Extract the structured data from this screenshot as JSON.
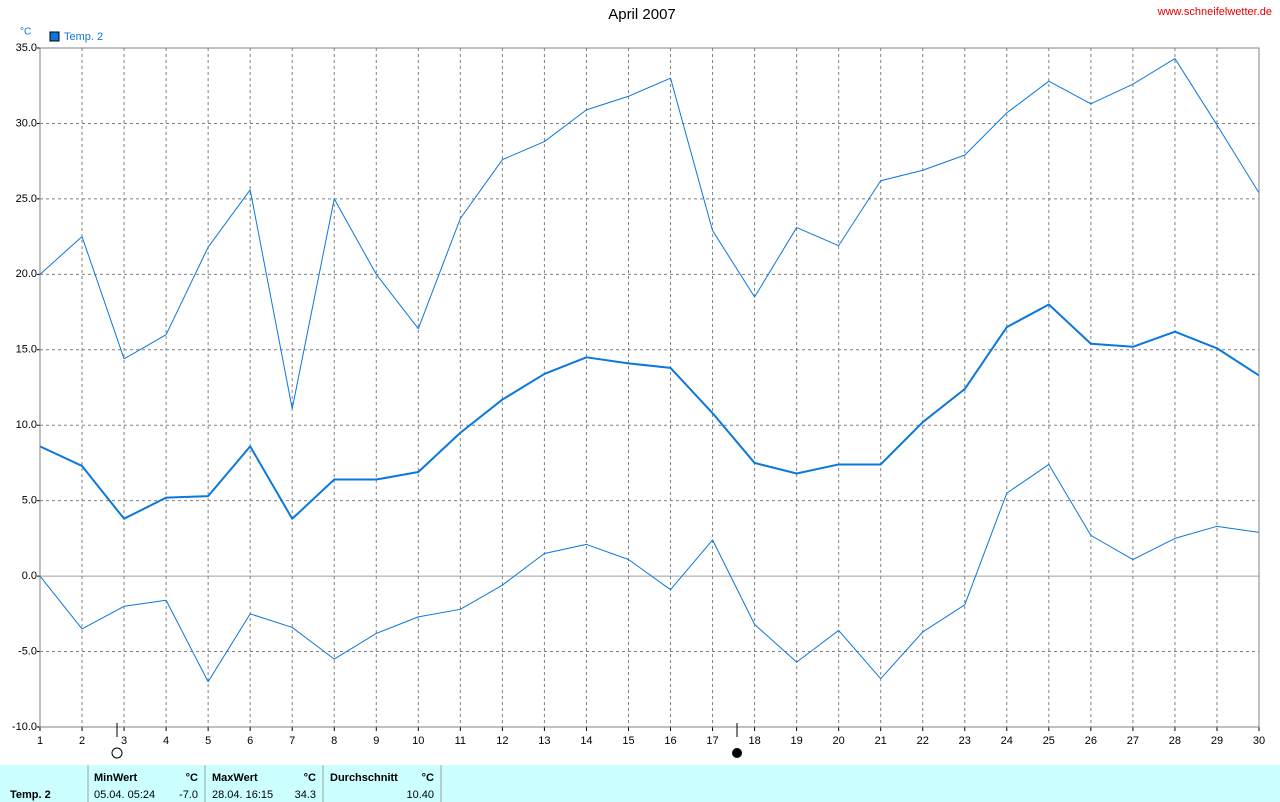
{
  "chart_data": {
    "type": "line",
    "title": "April 2007",
    "unit": "°C",
    "source": "www.schneifelwetter.de",
    "x": [
      1,
      2,
      3,
      4,
      5,
      6,
      7,
      8,
      9,
      10,
      11,
      12,
      13,
      14,
      15,
      16,
      17,
      18,
      19,
      20,
      21,
      22,
      23,
      24,
      25,
      26,
      27,
      28,
      29,
      30
    ],
    "series": [
      {
        "name": "Temp. 2",
        "color": "#0a78dc",
        "values": [
          8.6,
          7.3,
          3.8,
          5.2,
          5.3,
          8.6,
          3.8,
          6.4,
          6.4,
          6.9,
          9.5,
          11.7,
          13.4,
          14.5,
          14.1,
          13.8,
          10.8,
          7.5,
          6.8,
          7.4,
          7.4,
          10.2,
          12.4,
          16.5,
          18.0,
          15.4,
          15.2,
          16.2,
          15.1,
          13.3
        ]
      },
      {
        "color": "#0a78dc",
        "values": [
          20.0,
          22.5,
          14.4,
          16.0,
          21.8,
          25.6,
          11.1,
          25.0,
          20.0,
          16.4,
          23.7,
          27.6,
          28.8,
          30.9,
          31.8,
          33.0,
          22.9,
          18.5,
          23.1,
          21.9,
          26.2,
          26.9,
          27.9,
          30.7,
          32.8,
          31.3,
          32.6,
          34.3,
          29.9,
          25.4
        ]
      },
      {
        "color": "#0a78dc",
        "values": [
          0.0,
          -3.5,
          -2.0,
          -1.6,
          -7.0,
          -2.5,
          -3.4,
          -5.5,
          -3.8,
          -2.7,
          -2.2,
          -0.6,
          1.5,
          2.1,
          1.1,
          -0.9,
          2.4,
          -3.2,
          -5.7,
          -3.6,
          -6.8,
          -3.7,
          -1.9,
          5.5,
          7.4,
          2.7,
          1.1,
          2.5,
          3.3,
          2.9
        ]
      }
    ],
    "xlim": [
      1,
      30
    ],
    "xticks": [
      1,
      2,
      3,
      4,
      5,
      6,
      7,
      8,
      9,
      10,
      11,
      12,
      13,
      14,
      15,
      16,
      17,
      18,
      19,
      20,
      21,
      22,
      23,
      24,
      25,
      26,
      27,
      28,
      29,
      30
    ],
    "ylim": [
      -10,
      35
    ],
    "yticks": [
      {
        "value": -10,
        "label": "-10.0"
      },
      {
        "value": -5,
        "label": "-5.0"
      },
      {
        "value": 0,
        "label": "0.0"
      },
      {
        "value": 5,
        "label": "5.0"
      },
      {
        "value": 10,
        "label": "10.0"
      },
      {
        "value": 15,
        "label": "15.0"
      },
      {
        "value": 20,
        "label": "20.0"
      },
      {
        "value": 25,
        "label": "25.0"
      },
      {
        "value": 30,
        "label": "30.0"
      },
      {
        "value": 35,
        "label": "35.0"
      }
    ],
    "grid": true,
    "legend": "top-left"
  },
  "stats": {
    "row_label": "Temp. 2",
    "min": {
      "label": "MinWert",
      "unit": "°C",
      "time": "05.04.  05:24",
      "value": "-7.0"
    },
    "max": {
      "label": "MaxWert",
      "unit": "°C",
      "time": "28.04.  16:15",
      "value": "34.3"
    },
    "avg": {
      "label": "Durchschnitt",
      "unit": "°C",
      "value": "10.40"
    }
  }
}
